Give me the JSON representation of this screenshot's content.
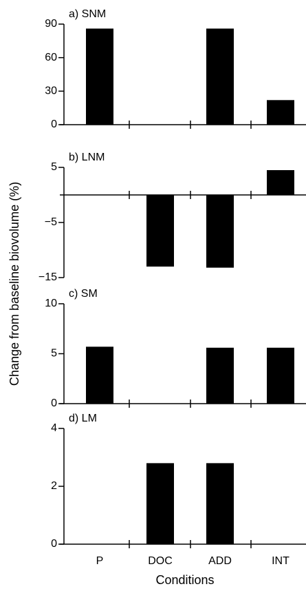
{
  "chart_data": [
    {
      "type": "bar",
      "title": "a) SNM",
      "ylabel": "Change from baseline biovolume (%)",
      "values": [
        86,
        0,
        86,
        22
      ],
      "color": "#000000",
      "ylim": [
        0,
        90
      ],
      "yticks": [
        0,
        30,
        60,
        90
      ]
    },
    {
      "type": "bar",
      "title": "b) LNM",
      "values": [
        0,
        -13,
        -13.2,
        4.5
      ],
      "color": "#000000",
      "ylim": [
        -15,
        5
      ],
      "yticks": [
        5,
        {
          "value": -5,
          "label": "−5"
        },
        {
          "value": -15,
          "label": "−15"
        }
      ]
    },
    {
      "type": "bar",
      "title": "c) SM",
      "values": [
        5.7,
        0,
        5.6,
        5.6
      ],
      "color": "#000000",
      "ylim": [
        0,
        10
      ],
      "yticks": [
        0,
        5,
        10
      ]
    },
    {
      "type": "bar",
      "title": "d) LM",
      "xlabel": "Conditions",
      "categories": [
        "P",
        "DOC",
        "ADD",
        "INT"
      ],
      "values": [
        0,
        2.8,
        2.8,
        0
      ],
      "color": "#000000",
      "ylim": [
        0,
        4
      ],
      "yticks": [
        0,
        2,
        4
      ]
    }
  ]
}
